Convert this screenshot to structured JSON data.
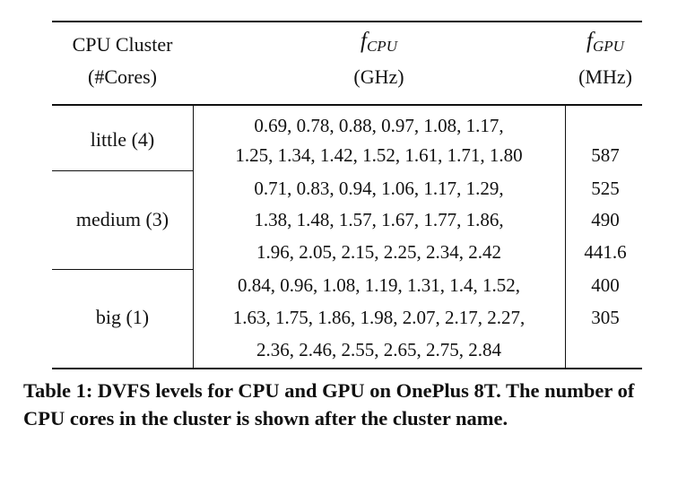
{
  "table": {
    "header": {
      "cluster_label": "CPU Cluster",
      "cores_label": "(#Cores)",
      "fcpu_symbol": "f",
      "fcpu_subscript": "CPU",
      "fcpu_unit": "(GHz)",
      "fgpu_symbol": "f",
      "fgpu_subscript": "GPU",
      "fgpu_unit": "(MHz)"
    },
    "clusters": [
      {
        "name": "little (4)",
        "freq_lines": [
          "0.69, 0.78, 0.88, 0.97, 1.08, 1.17,",
          "1.25, 1.34, 1.42, 1.52, 1.61, 1.71, 1.80"
        ]
      },
      {
        "name": "medium (3)",
        "freq_lines": [
          "0.71, 0.83, 0.94, 1.06, 1.17, 1.29,",
          "1.38, 1.48, 1.57, 1.67, 1.77, 1.86,",
          "1.96, 2.05, 2.15, 2.25, 2.34, 2.42"
        ]
      },
      {
        "name": "big (1)",
        "freq_lines": [
          "0.84, 0.96, 1.08, 1.19, 1.31, 1.4, 1.52,",
          "1.63, 1.75, 1.86, 1.98, 2.07, 2.17, 2.27,",
          "2.36, 2.46, 2.55, 2.65, 2.75, 2.84"
        ]
      }
    ],
    "gpu_levels": [
      "587",
      "525",
      "490",
      "441.6",
      "400",
      "305"
    ]
  },
  "caption": "Table 1: DVFS levels for CPU and GPU on OnePlus 8T. The number of CPU cores in the cluster is shown after the cluster name."
}
